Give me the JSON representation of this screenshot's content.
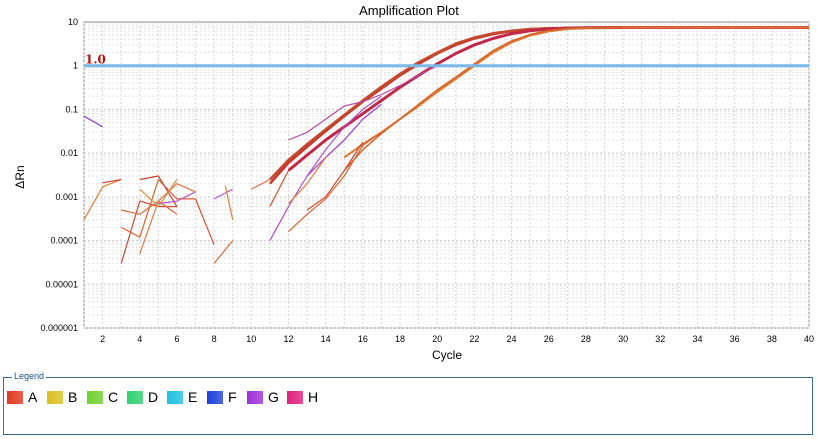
{
  "chart_data": {
    "type": "line",
    "title": "Amplification Plot",
    "xlabel": "Cycle",
    "ylabel": "ΔRn",
    "xlim": [
      1,
      40
    ],
    "ylim": [
      1e-06,
      10
    ],
    "yscale": "log",
    "grid": true,
    "x_ticks": [
      2,
      4,
      6,
      8,
      10,
      12,
      14,
      16,
      18,
      20,
      22,
      24,
      26,
      28,
      30,
      32,
      34,
      36,
      38,
      40
    ],
    "y_ticks": [
      {
        "value": 10,
        "label": "10"
      },
      {
        "value": 1,
        "label": "1"
      },
      {
        "value": 0.1,
        "label": "0.1"
      },
      {
        "value": 0.01,
        "label": "0.01"
      },
      {
        "value": 0.001,
        "label": "0.001"
      },
      {
        "value": 0.0001,
        "label": "0.0001"
      },
      {
        "value": 1e-05,
        "label": "0.00001"
      },
      {
        "value": 1e-06,
        "label": "0.000001"
      }
    ],
    "threshold": {
      "value": 1.0,
      "label": "1.0",
      "color": "#7ab8ea"
    },
    "series": [
      {
        "color": "#c8342a",
        "width": 2.5,
        "points": [
          [
            11,
            0.002
          ],
          [
            12,
            0.006
          ],
          [
            13,
            0.014
          ],
          [
            14,
            0.032
          ],
          [
            15,
            0.07
          ],
          [
            16,
            0.15
          ],
          [
            17,
            0.3
          ],
          [
            18,
            0.6
          ],
          [
            19,
            1.1
          ],
          [
            20,
            1.9
          ],
          [
            21,
            3.0
          ],
          [
            22,
            4.2
          ],
          [
            23,
            5.3
          ],
          [
            24,
            6.2
          ],
          [
            25,
            6.8
          ],
          [
            26,
            7.1
          ],
          [
            28,
            7.4
          ],
          [
            30,
            7.5
          ],
          [
            35,
            7.5
          ],
          [
            40,
            7.5
          ]
        ]
      },
      {
        "color": "#c44a2e",
        "width": 2.5,
        "points": [
          [
            11,
            0.0025
          ],
          [
            12,
            0.007
          ],
          [
            13,
            0.016
          ],
          [
            14,
            0.035
          ],
          [
            15,
            0.075
          ],
          [
            16,
            0.16
          ],
          [
            17,
            0.33
          ],
          [
            18,
            0.65
          ],
          [
            19,
            1.2
          ],
          [
            20,
            2.0
          ],
          [
            21,
            3.2
          ],
          [
            22,
            4.4
          ],
          [
            23,
            5.5
          ],
          [
            24,
            6.3
          ],
          [
            25,
            6.9
          ],
          [
            26,
            7.2
          ],
          [
            28,
            7.4
          ],
          [
            30,
            7.5
          ],
          [
            40,
            7.5
          ]
        ]
      },
      {
        "color": "#c0284a",
        "width": 3,
        "points": [
          [
            12,
            0.004
          ],
          [
            13,
            0.009
          ],
          [
            14,
            0.02
          ],
          [
            15,
            0.04
          ],
          [
            16,
            0.08
          ],
          [
            17,
            0.16
          ],
          [
            18,
            0.32
          ],
          [
            19,
            0.6
          ],
          [
            20,
            1.1
          ],
          [
            21,
            1.9
          ],
          [
            22,
            3.0
          ],
          [
            23,
            4.2
          ],
          [
            24,
            5.4
          ],
          [
            25,
            6.3
          ],
          [
            26,
            6.9
          ],
          [
            27,
            7.2
          ],
          [
            28,
            7.4
          ],
          [
            30,
            7.5
          ],
          [
            40,
            7.5
          ]
        ]
      },
      {
        "color": "#b84aa0",
        "width": 1.2,
        "points": [
          [
            12,
            0.02
          ],
          [
            13,
            0.03
          ],
          [
            14,
            0.06
          ],
          [
            15,
            0.12
          ],
          [
            16,
            0.15
          ],
          [
            17,
            0.22
          ],
          [
            18,
            0.35
          ],
          [
            19,
            0.6
          ],
          [
            20,
            1.0
          ]
        ]
      },
      {
        "color": "#9a3ad0",
        "width": 1.2,
        "points": [
          [
            13,
            0.003
          ],
          [
            14,
            0.008
          ],
          [
            15,
            0.02
          ],
          [
            16,
            0.06
          ],
          [
            17,
            0.13
          ]
        ]
      },
      {
        "color": "#e07830",
        "width": 2,
        "points": [
          [
            15,
            0.008
          ],
          [
            16,
            0.016
          ],
          [
            17,
            0.03
          ],
          [
            18,
            0.06
          ],
          [
            19,
            0.12
          ],
          [
            20,
            0.25
          ],
          [
            21,
            0.5
          ],
          [
            22,
            1.0
          ],
          [
            23,
            2.0
          ],
          [
            24,
            3.4
          ],
          [
            25,
            4.9
          ],
          [
            26,
            6.1
          ],
          [
            27,
            6.9
          ],
          [
            28,
            7.3
          ],
          [
            30,
            7.5
          ],
          [
            40,
            7.5
          ]
        ]
      },
      {
        "color": "#d8642a",
        "width": 1.5,
        "points": [
          [
            15,
            0.004
          ],
          [
            16,
            0.012
          ],
          [
            17,
            0.028
          ],
          [
            18,
            0.06
          ],
          [
            19,
            0.13
          ],
          [
            20,
            0.28
          ],
          [
            21,
            0.55
          ],
          [
            22,
            1.1
          ],
          [
            23,
            2.2
          ],
          [
            24,
            3.7
          ],
          [
            25,
            5.2
          ],
          [
            26,
            6.4
          ],
          [
            27,
            7.1
          ],
          [
            28,
            7.4
          ],
          [
            30,
            7.5
          ]
        ]
      },
      {
        "color": "#b050c0",
        "width": 1.2,
        "points": [
          [
            11,
            0.0001
          ],
          [
            12,
            0.0006
          ],
          [
            13,
            0.003
          ],
          [
            14,
            0.012
          ],
          [
            15,
            0.04
          ],
          [
            16,
            0.1
          ],
          [
            17,
            0.2
          ]
        ]
      },
      {
        "color": "#e06030",
        "width": 1.2,
        "points": [
          [
            12,
            0.00016
          ],
          [
            13,
            0.0004
          ],
          [
            14,
            0.0009
          ],
          [
            15,
            0.003
          ],
          [
            16,
            0.015
          ],
          [
            17,
            0.03
          ]
        ]
      },
      {
        "color": "#d04a30",
        "width": 1.2,
        "points": [
          [
            13,
            0.0005
          ],
          [
            14,
            0.001
          ],
          [
            15,
            0.004
          ],
          [
            16,
            0.018
          ]
        ]
      },
      {
        "color": "#9040d0",
        "width": 1.2,
        "points": [
          [
            1,
            0.07
          ],
          [
            2,
            0.04
          ]
        ]
      },
      {
        "color": "#e07a3a",
        "width": 1.2,
        "points": [
          [
            1,
            0.0003
          ],
          [
            2,
            0.0017
          ],
          [
            3,
            0.0025
          ]
        ]
      },
      {
        "color": "#d04040",
        "width": 1.2,
        "points": [
          [
            2,
            0.0021
          ],
          [
            3,
            0.0025
          ]
        ]
      },
      {
        "color": "#c84a3a",
        "width": 1.2,
        "points": [
          [
            3,
            3e-05
          ],
          [
            4,
            0.0008
          ],
          [
            5,
            0.0006
          ],
          [
            6,
            0.0006
          ]
        ]
      },
      {
        "color": "#e06a34",
        "width": 1.2,
        "points": [
          [
            3,
            0.0005
          ],
          [
            4,
            0.0004
          ],
          [
            5,
            0.0008
          ],
          [
            6,
            0.0004
          ]
        ]
      },
      {
        "color": "#d86030",
        "width": 1.2,
        "points": [
          [
            3,
            0.0002
          ],
          [
            4,
            0.00012
          ],
          [
            5,
            0.0025
          ],
          [
            6,
            0.0009
          ],
          [
            7,
            0.0009
          ]
        ]
      },
      {
        "color": "#c04030",
        "width": 1.2,
        "points": [
          [
            4,
            0.0025
          ],
          [
            5,
            0.003
          ],
          [
            6,
            0.0006
          ]
        ]
      },
      {
        "color": "#e07840",
        "width": 1.2,
        "points": [
          [
            4,
            5e-05
          ],
          [
            5,
            0.0008
          ],
          [
            6,
            0.002
          ],
          [
            7,
            0.0013
          ]
        ]
      },
      {
        "color": "#b858c8",
        "width": 1.2,
        "points": [
          [
            5,
            0.0007
          ],
          [
            6,
            0.0008
          ],
          [
            7,
            0.0013
          ]
        ]
      },
      {
        "color": "#e08a40",
        "width": 1.2,
        "points": [
          [
            4,
            0.0015
          ],
          [
            5,
            0.0006
          ],
          [
            6,
            0.0025
          ]
        ]
      },
      {
        "color": "#d85030",
        "width": 1.2,
        "points": [
          [
            7,
            0.0009
          ],
          [
            8,
            8e-05
          ]
        ]
      },
      {
        "color": "#e06a3a",
        "width": 1.2,
        "points": [
          [
            8,
            3e-05
          ],
          [
            9,
            0.0001
          ]
        ]
      },
      {
        "color": "#b060d0",
        "width": 1.2,
        "points": [
          [
            8,
            0.0009
          ],
          [
            9,
            0.0015
          ]
        ]
      },
      {
        "color": "#e08040",
        "width": 1.2,
        "points": [
          [
            9,
            0.0003
          ],
          [
            8.6,
            0.0018
          ]
        ]
      },
      {
        "color": "#e07040",
        "width": 1.2,
        "points": [
          [
            10,
            0.0015
          ],
          [
            11,
            0.0025
          ]
        ]
      },
      {
        "color": "#d05030",
        "width": 1.2,
        "points": [
          [
            11,
            0.0006
          ],
          [
            12,
            0.004
          ]
        ]
      },
      {
        "color": "#e07a3a",
        "width": 1.2,
        "points": [
          [
            12,
            0.0007
          ],
          [
            13,
            0.002
          ],
          [
            14,
            0.008
          ]
        ]
      }
    ]
  },
  "legend": {
    "title": "Legend",
    "items": [
      {
        "label": "A",
        "color": "#e03a20"
      },
      {
        "label": "B",
        "color": "#d8c020"
      },
      {
        "label": "C",
        "color": "#70d030"
      },
      {
        "label": "D",
        "color": "#30d070"
      },
      {
        "label": "E",
        "color": "#20c0e0"
      },
      {
        "label": "F",
        "color": "#2040d8"
      },
      {
        "label": "G",
        "color": "#a030d8"
      },
      {
        "label": "H",
        "color": "#e02080"
      }
    ]
  }
}
